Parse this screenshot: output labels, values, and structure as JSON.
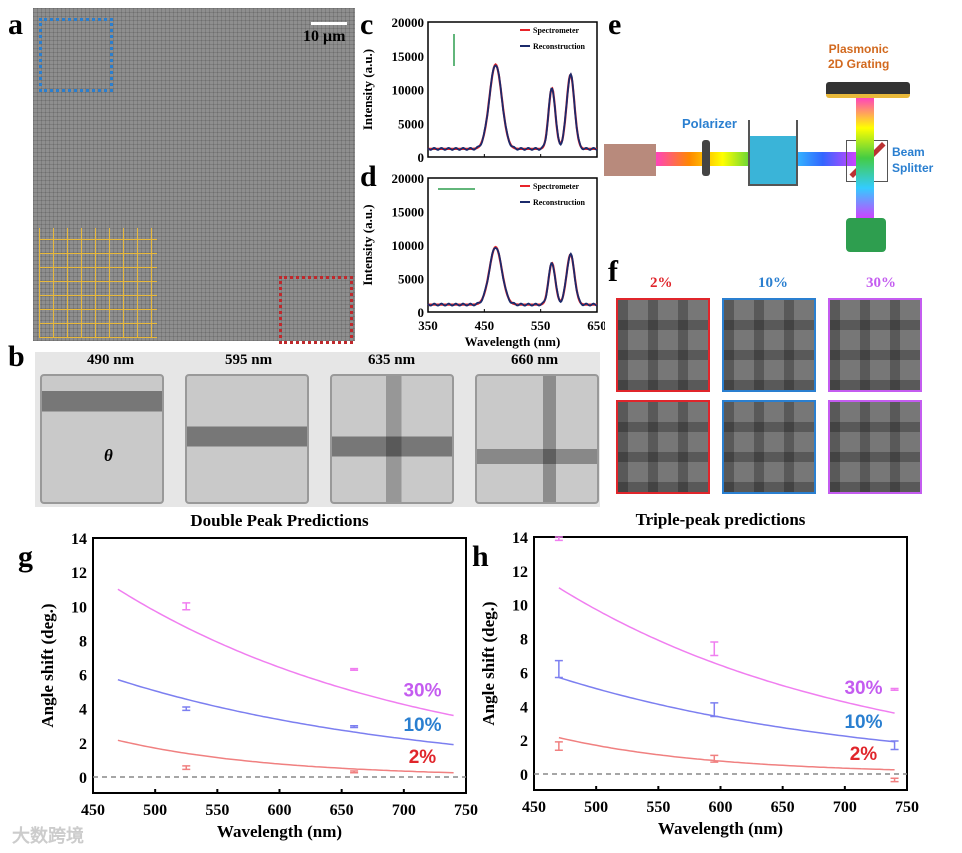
{
  "panels": {
    "a": "a",
    "b": "b",
    "c": "c",
    "d": "d",
    "e": "e",
    "f": "f",
    "g": "g",
    "h": "h"
  },
  "panel_a": {
    "scale_bar": "10 μm"
  },
  "panel_b": {
    "tiles": [
      "490 nm",
      "595 nm",
      "635 nm",
      "660 nm"
    ],
    "theta": "θ"
  },
  "panel_e": {
    "polarizer": "Polarizer",
    "grating": "Plasmonic\n2D Grating",
    "splitter": "Beam\nSplitter"
  },
  "panel_f": {
    "labels": [
      "2%",
      "10%",
      "30%"
    ],
    "colors": [
      "#e0252b",
      "#2a7fd0",
      "#c45cf0"
    ]
  },
  "watermark": "大数跨境",
  "chart_data": [
    {
      "id": "c",
      "type": "line",
      "ylabel": "Intensity (a.u.)",
      "xlabel": "",
      "xlim": [
        350,
        650
      ],
      "ylim": [
        0,
        20000
      ],
      "yticks": [
        0,
        5000,
        10000,
        15000,
        20000
      ],
      "xticks": [
        "",
        "",
        "",
        ""
      ],
      "legend": [
        "Spectrometer",
        "Reconstruction"
      ],
      "series_colors": [
        "#e8242a",
        "#1b2a6b"
      ],
      "baseline": 1200,
      "peaks": [
        {
          "center": 470,
          "sigma": 11,
          "height": 12500
        },
        {
          "center": 570,
          "sigma": 6,
          "height": 9000
        },
        {
          "center": 603,
          "sigma": 7,
          "height": 11000
        }
      ]
    },
    {
      "id": "d",
      "type": "line",
      "ylabel": "Intensity (a.u.)",
      "xlabel": "Wavelength (nm)",
      "xlim": [
        350,
        650
      ],
      "ylim": [
        0,
        20000
      ],
      "yticks": [
        0,
        5000,
        10000,
        15000,
        20000
      ],
      "xticks": [
        "350",
        "450",
        "550",
        "650"
      ],
      "legend": [
        "Spectrometer",
        "Reconstruction"
      ],
      "series_colors": [
        "#e8242a",
        "#1b2a6b"
      ],
      "baseline": 1100,
      "peaks": [
        {
          "center": 470,
          "sigma": 11,
          "height": 8600
        },
        {
          "center": 570,
          "sigma": 6,
          "height": 6200
        },
        {
          "center": 603,
          "sigma": 7,
          "height": 7500
        }
      ]
    },
    {
      "id": "g",
      "type": "scatter",
      "title": "Double Peak Predictions",
      "xlabel": "Wavelength (nm)",
      "ylabel": "Angle shift (deg.)",
      "xlim": [
        450,
        750
      ],
      "ylim": [
        -1,
        14
      ],
      "xticks": [
        "450",
        "500",
        "550",
        "600",
        "650",
        "700",
        "750"
      ],
      "yticks": [
        "0",
        "2",
        "4",
        "6",
        "8",
        "10",
        "12",
        "14"
      ],
      "series": [
        {
          "name": "30%",
          "color": "#f07ef0",
          "label_color": "#c45cf0",
          "curve": [
            [
              470,
              11.0
            ],
            [
              740,
              3.6
            ]
          ],
          "points": [
            [
              525,
              10.0,
              0.2
            ],
            [
              660,
              6.3,
              0.05
            ]
          ]
        },
        {
          "name": "10%",
          "color": "#7c7ff0",
          "label_color": "#2a7fd0",
          "curve": [
            [
              470,
              5.7
            ],
            [
              740,
              1.9
            ]
          ],
          "points": [
            [
              525,
              4.0,
              0.1
            ],
            [
              660,
              2.95,
              0.05
            ]
          ]
        },
        {
          "name": "2%",
          "color": "#f08080",
          "label_color": "#e0252b",
          "curve": [
            [
              470,
              2.15
            ],
            [
              740,
              0.25
            ]
          ],
          "points": [
            [
              525,
              0.55,
              0.1
            ],
            [
              660,
              0.3,
              0.05
            ]
          ]
        }
      ]
    },
    {
      "id": "h",
      "type": "scatter",
      "title": "Triple-peak predictions",
      "xlabel": "Wavelength (nm)",
      "ylabel": "Angle shift (deg.)",
      "xlim": [
        450,
        750
      ],
      "ylim": [
        -1,
        14
      ],
      "xticks": [
        "450",
        "500",
        "550",
        "600",
        "650",
        "700",
        "750"
      ],
      "yticks": [
        "0",
        "2",
        "4",
        "6",
        "8",
        "10",
        "12",
        "14"
      ],
      "series": [
        {
          "name": "30%",
          "color": "#f07ef0",
          "label_color": "#c45cf0",
          "curve": [
            [
              470,
              11.0
            ],
            [
              740,
              3.6
            ]
          ],
          "points": [
            [
              470,
              13.9,
              0.1
            ],
            [
              595,
              7.4,
              0.4
            ],
            [
              740,
              5.0,
              0.05
            ]
          ]
        },
        {
          "name": "10%",
          "color": "#7c7ff0",
          "label_color": "#2a7fd0",
          "curve": [
            [
              470,
              5.7
            ],
            [
              740,
              1.9
            ]
          ],
          "points": [
            [
              470,
              6.2,
              0.5
            ],
            [
              595,
              3.8,
              0.4
            ],
            [
              740,
              1.7,
              0.25
            ]
          ]
        },
        {
          "name": "2%",
          "color": "#f08080",
          "label_color": "#e0252b",
          "curve": [
            [
              470,
              2.15
            ],
            [
              740,
              0.25
            ]
          ],
          "points": [
            [
              470,
              1.65,
              0.25
            ],
            [
              595,
              0.9,
              0.2
            ],
            [
              740,
              -0.35,
              0.1
            ]
          ]
        }
      ]
    }
  ]
}
